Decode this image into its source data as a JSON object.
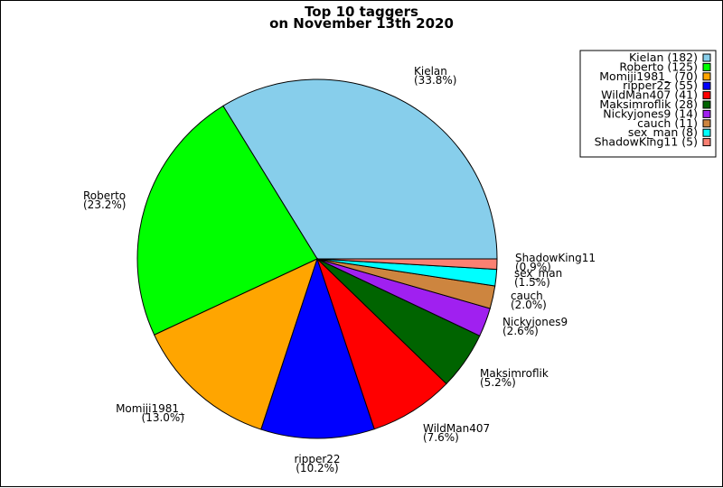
{
  "chart_data": {
    "type": "pie",
    "title": [
      "Top 10 taggers",
      "on November 13th 2020"
    ],
    "legend_placement": "top-right",
    "slices": [
      {
        "name": "Kielan",
        "value": 182,
        "pct": "(33.8%)",
        "legend": "Kielan (182)",
        "color": "#87ceeb"
      },
      {
        "name": "Roberto",
        "value": 125,
        "pct": "(23.2%)",
        "legend": "Roberto (125)",
        "color": "#00ff00"
      },
      {
        "name": "Momiji1981_",
        "value": 70,
        "pct": "(13.0%)",
        "legend": "Momiji1981_ (70)",
        "color": "#ffa500"
      },
      {
        "name": "ripper22",
        "value": 55,
        "pct": "(10.2%)",
        "legend": "ripper22 (55)",
        "color": "#0000ff"
      },
      {
        "name": "WildMan407",
        "value": 41,
        "pct": "(7.6%)",
        "legend": "WildMan407 (41)",
        "color": "#ff0000"
      },
      {
        "name": "Maksimroflik",
        "value": 28,
        "pct": "(5.2%)",
        "legend": "Maksimroflik (28)",
        "color": "#006400"
      },
      {
        "name": "Nickyjones9",
        "value": 14,
        "pct": "(2.6%)",
        "legend": "Nickyjones9 (14)",
        "color": "#a020f0"
      },
      {
        "name": "cauch",
        "value": 11,
        "pct": "(2.0%)",
        "legend": "cauch (11)",
        "color": "#cd853f"
      },
      {
        "name": "sex_man",
        "value": 8,
        "pct": "(1.5%)",
        "legend": "sex_man (8)",
        "color": "#00ffff"
      },
      {
        "name": "ShadowKing11",
        "value": 5,
        "pct": "(0.9%)",
        "legend": "ShadowKing11 (5)",
        "color": "#fa8072"
      }
    ]
  }
}
